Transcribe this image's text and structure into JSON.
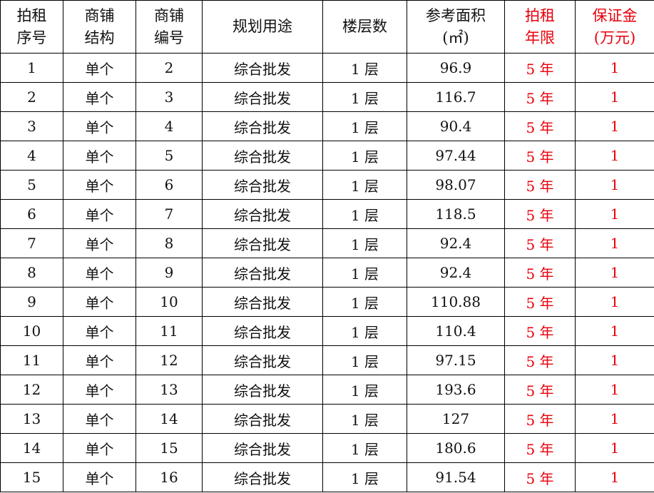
{
  "colors": {
    "red": "#e8000b"
  },
  "table": {
    "headers": [
      [
        "拍租",
        "序号"
      ],
      [
        "商铺",
        "结构"
      ],
      [
        "商铺",
        "编号"
      ],
      [
        "规划用途"
      ],
      [
        "楼层数"
      ],
      [
        "参考面积",
        "(㎡)"
      ],
      [
        "拍租",
        "年限"
      ],
      [
        "保证金",
        "(万元)"
      ]
    ],
    "rows": [
      [
        "1",
        "单个",
        "2",
        "综合批发",
        "1 层",
        "96.9",
        "5 年",
        "1"
      ],
      [
        "2",
        "单个",
        "3",
        "综合批发",
        "1 层",
        "116.7",
        "5 年",
        "1"
      ],
      [
        "3",
        "单个",
        "4",
        "综合批发",
        "1 层",
        "90.4",
        "5 年",
        "1"
      ],
      [
        "4",
        "单个",
        "5",
        "综合批发",
        "1 层",
        "97.44",
        "5 年",
        "1"
      ],
      [
        "5",
        "单个",
        "6",
        "综合批发",
        "1 层",
        "98.07",
        "5 年",
        "1"
      ],
      [
        "6",
        "单个",
        "7",
        "综合批发",
        "1 层",
        "118.5",
        "5 年",
        "1"
      ],
      [
        "7",
        "单个",
        "8",
        "综合批发",
        "1 层",
        "92.4",
        "5 年",
        "1"
      ],
      [
        "8",
        "单个",
        "9",
        "综合批发",
        "1 层",
        "92.4",
        "5 年",
        "1"
      ],
      [
        "9",
        "单个",
        "10",
        "综合批发",
        "1 层",
        "110.88",
        "5 年",
        "1"
      ],
      [
        "10",
        "单个",
        "11",
        "综合批发",
        "1 层",
        "110.4",
        "5 年",
        "1"
      ],
      [
        "11",
        "单个",
        "12",
        "综合批发",
        "1 层",
        "97.15",
        "5 年",
        "1"
      ],
      [
        "12",
        "单个",
        "13",
        "综合批发",
        "1 层",
        "193.6",
        "5 年",
        "1"
      ],
      [
        "13",
        "单个",
        "14",
        "综合批发",
        "1 层",
        "127",
        "5 年",
        "1"
      ],
      [
        "14",
        "单个",
        "15",
        "综合批发",
        "1 层",
        "180.6",
        "5 年",
        "1"
      ],
      [
        "15",
        "单个",
        "16",
        "综合批发",
        "1 层",
        "91.54",
        "5 年",
        "1"
      ]
    ]
  }
}
